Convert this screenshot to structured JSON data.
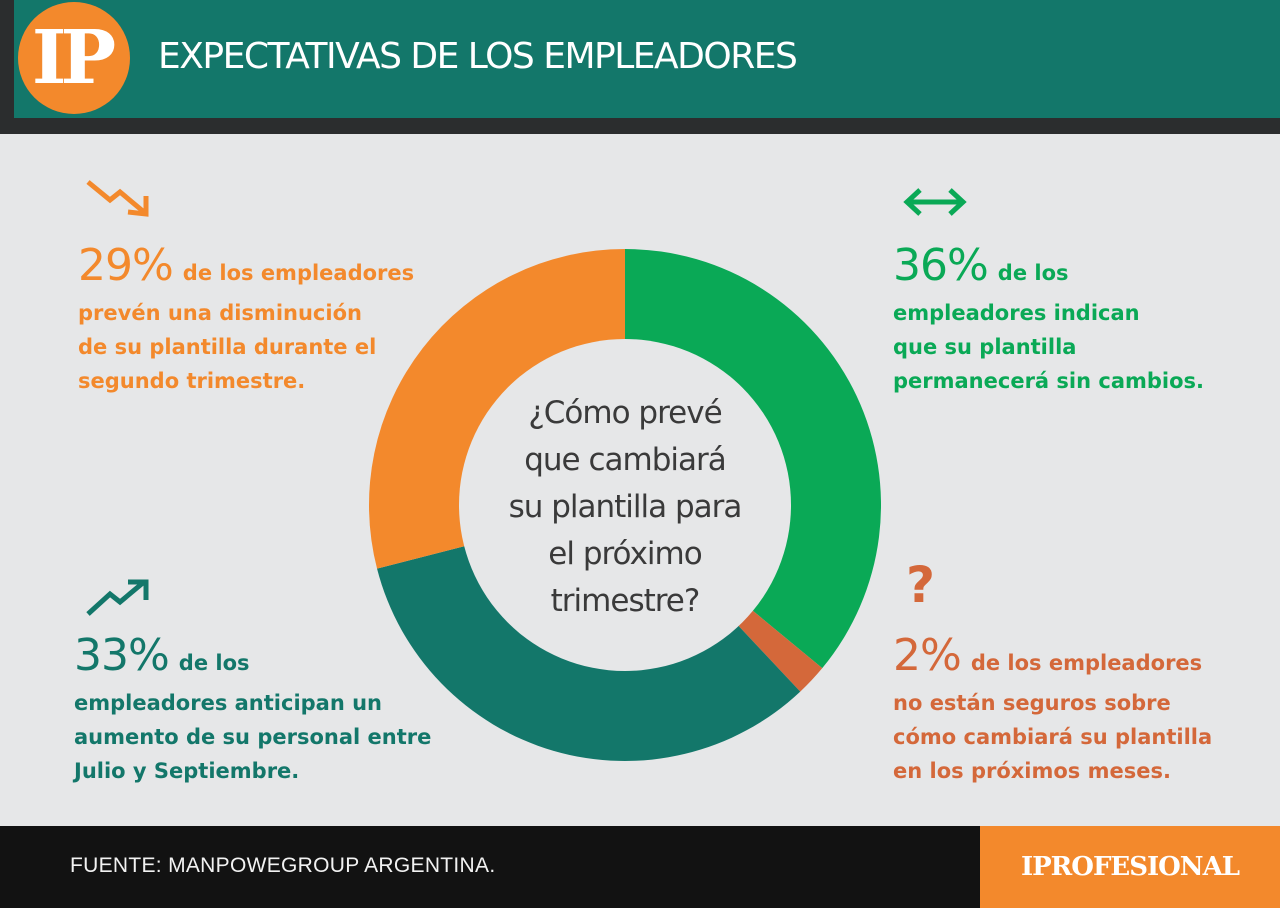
{
  "header": {
    "logo": "IP",
    "title": "EXPECTATIVAS DE LOS EMPLEADORES"
  },
  "chart_data": {
    "type": "pie",
    "center_text": [
      "¿Cómo prevé",
      "que cambiará",
      "su plantilla para",
      "el próximo",
      "trimestre?"
    ],
    "slices": [
      {
        "label": "permanecerá sin cambios",
        "value": 36,
        "color": "#0aa956"
      },
      {
        "label": "no están seguros",
        "value": 2,
        "color": "#d4683a"
      },
      {
        "label": "aumento",
        "value": 33,
        "color": "#13776a"
      },
      {
        "label": "disminución",
        "value": 29,
        "color": "#f3892c"
      }
    ]
  },
  "callouts": {
    "decrease": {
      "pct": "29%",
      "lead": "de los empleadores",
      "lines": [
        "prevén  una disminución",
        "de su plantilla durante el",
        "segundo trimestre."
      ],
      "icon": "arrow-down-right-icon"
    },
    "nochange": {
      "pct": "36%",
      "lead": "de los",
      "lines": [
        "empleadores  indican",
        "que su plantilla",
        "permanecerá sin cambios."
      ],
      "icon": "arrow-left-right-icon"
    },
    "increase": {
      "pct": "33%",
      "lead": "de los",
      "lines": [
        "empleadores anticipan  un",
        "aumento de su personal entre",
        "Julio  y Septiembre."
      ],
      "icon": "trend-up-icon"
    },
    "unsure": {
      "pct": "2%",
      "lead": "de los empleadores",
      "lines": [
        "no  están seguros sobre",
        "cómo  cambiará su plantilla",
        "en los  próximos meses."
      ],
      "icon": "question-mark-icon",
      "icon_glyph": "?"
    }
  },
  "footer": {
    "source": "FUENTE: MANPOWEGROUP ARGENTINA.",
    "brand": "IPROFESIONAL"
  },
  "colors": {
    "header": "#13776a",
    "orange": "#f3892c",
    "green": "#0aa956",
    "teal": "#13776a",
    "rust": "#d4683a",
    "background": "#e6e7e8"
  }
}
